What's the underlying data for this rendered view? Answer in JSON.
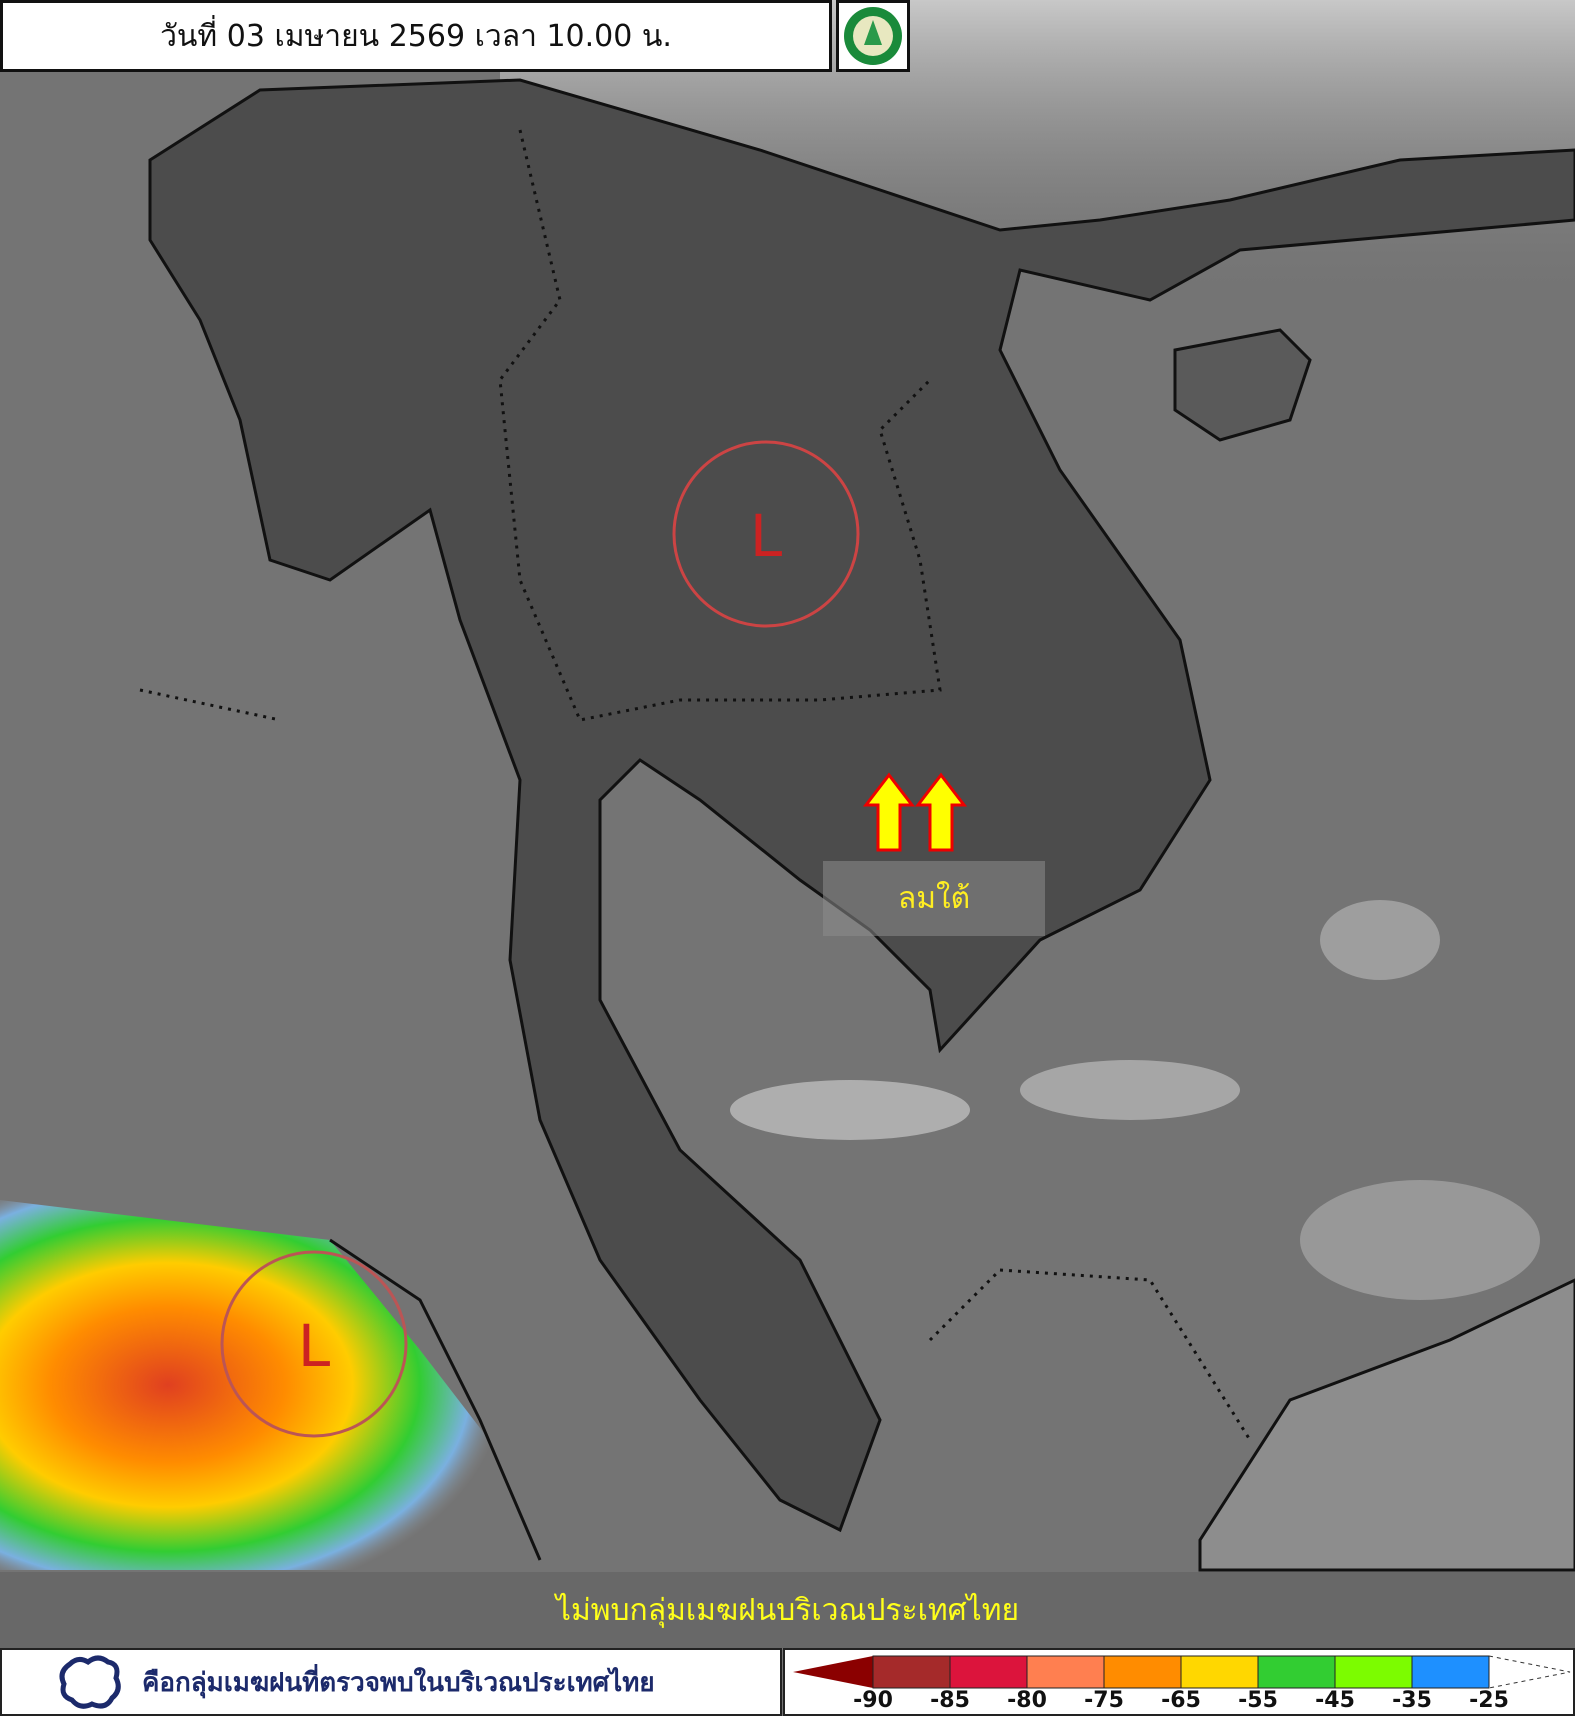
{
  "header": {
    "title": "วันที่ 03 เมษายน 2569 เวลา 10.00 น.",
    "logo": "Thai Meteorological Department seal"
  },
  "map": {
    "low_pressure_markers": [
      {
        "label": "L"
      },
      {
        "label": "L"
      }
    ],
    "wind_annotation": {
      "label": "ลมใต้",
      "icon": "arrow-up-icon",
      "color": "#ffff00"
    },
    "low_marker_color": "#cc2222"
  },
  "banner": {
    "text": "ไม่พบกลุ่มเมฆฝนบริเวณประเทศไทย"
  },
  "legend": {
    "note_icon": "cloud-outline-icon",
    "note_text": "คือกลุ่มเมฆฝนที่ตรวจพบในบริเวณประเทศไทย",
    "color_scale": {
      "colors": [
        "#8b0000",
        "#a52a2a",
        "#dc143c",
        "#ff7f50",
        "#ff8c00",
        "#ffd700",
        "#32cd32",
        "#7cfc00",
        "#1e90ff"
      ],
      "ticks": [
        "-90",
        "-85",
        "-80",
        "-75",
        "-65",
        "-55",
        "-45",
        "-35",
        "-25"
      ]
    }
  }
}
